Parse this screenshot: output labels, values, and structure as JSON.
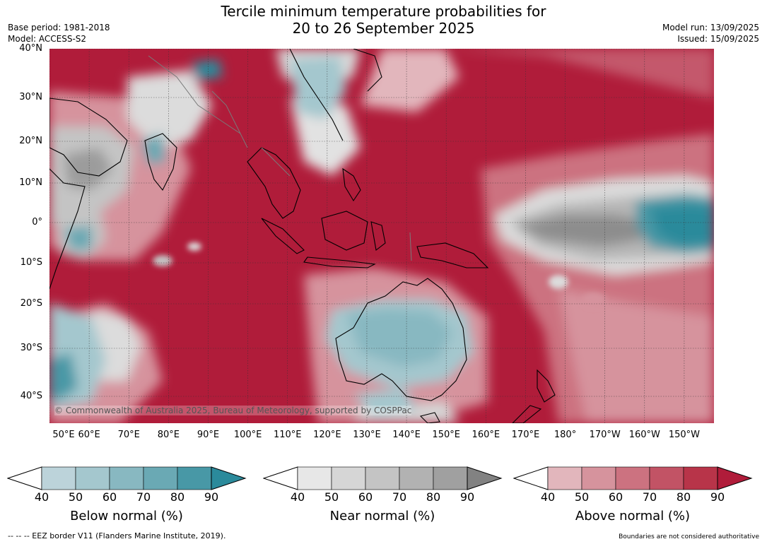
{
  "title_line1": "Tercile minimum temperature probabilities for",
  "title_line2": "20 to 26 September 2025",
  "base_period": "Base period: 1981-2018",
  "model": "Model: ACCESS-S2",
  "model_run": "Model run: 13/09/2025",
  "issued": "Issued: 15/09/2025",
  "copyright": "© Commonwealth of Australia 2025, Bureau of Meteorology, supported by COSPPac",
  "lat_labels": [
    "40°N",
    "30°N",
    "20°N",
    "10°N",
    "0°",
    "10°S",
    "20°S",
    "30°S",
    "40°S"
  ],
  "lon_labels": [
    "50°E",
    "60°E",
    "70°E",
    "80°E",
    "90°E",
    "100°E",
    "110°E",
    "120°E",
    "130°E",
    "140°E",
    "150°E",
    "160°E",
    "170°E",
    "180°",
    "170°W",
    "160°W",
    "150°W"
  ],
  "colorbars": [
    {
      "label": "Below normal (%)",
      "ticks": [
        "40",
        "50",
        "60",
        "70",
        "80",
        "90"
      ],
      "colors": [
        "#ffffff",
        "#bcd3da",
        "#a4c7ce",
        "#88b8c1",
        "#6aa9b4",
        "#4898a6",
        "#2b8a9b"
      ]
    },
    {
      "label": "Near normal (%)",
      "ticks": [
        "40",
        "50",
        "60",
        "70",
        "80",
        "90"
      ],
      "colors": [
        "#ffffff",
        "#e7e7e7",
        "#d6d6d6",
        "#c4c4c4",
        "#b2b2b2",
        "#a0a0a0",
        "#828282"
      ]
    },
    {
      "label": "Above normal (%)",
      "ticks": [
        "40",
        "50",
        "60",
        "70",
        "80",
        "90"
      ],
      "colors": [
        "#ffffff",
        "#e2b6bc",
        "#d6939d",
        "#cc7280",
        "#c25365",
        "#b83449",
        "#b01c3a"
      ]
    }
  ],
  "eez_note": "--  --  -- EEZ border V11 (Flanders Marine Institute, 2019).",
  "boundaries_note": "Boundaries are not considered authoritative"
}
